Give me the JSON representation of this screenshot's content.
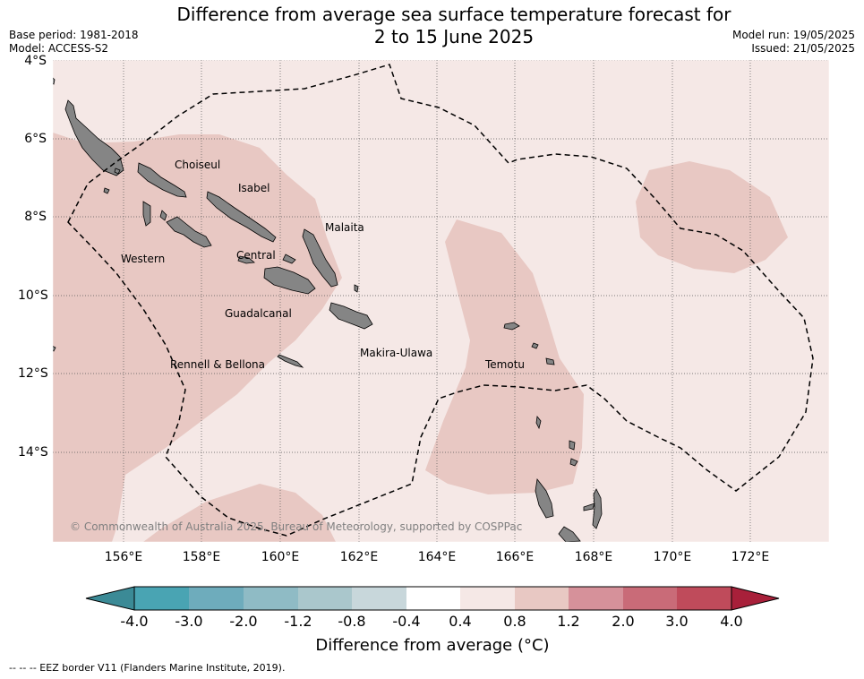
{
  "title_line1": "Difference from average sea surface temperature forecast for",
  "title_line2": "2 to 15 June 2025",
  "base_period": "Base period: 1981-2018",
  "model": "Model: ACCESS-S2",
  "model_run": "Model run: 19/05/2025",
  "issued": "Issued: 21/05/2025",
  "lat_ticks": [
    "4°S",
    "6°S",
    "8°S",
    "10°S",
    "12°S",
    "14°S"
  ],
  "lon_ticks": [
    "156°E",
    "158°E",
    "160°E",
    "162°E",
    "164°E",
    "166°E",
    "168°E",
    "170°E",
    "172°E"
  ],
  "places": [
    "Choiseul",
    "Isabel",
    "Malaita",
    "Western",
    "Central",
    "Guadalcanal",
    "Rennell & Bellona",
    "Makira-Ulawa",
    "Temotu"
  ],
  "copyright": "© Commonwealth of Australia 2025, Bureau of Meteorology, supported by COSPPac",
  "colorbar": {
    "labels": [
      "-4.0",
      "-3.0",
      "-2.0",
      "-1.2",
      "-0.8",
      "-0.4",
      "0.4",
      "0.8",
      "1.2",
      "2.0",
      "3.0",
      "4.0"
    ],
    "colors": [
      "#3b8a96",
      "#49a4b3",
      "#6eacbc",
      "#8fbbc5",
      "#aac7cc",
      "#c8d7db",
      "#ffffff",
      "#f5e8e6",
      "#e8c8c3",
      "#d6919a",
      "#c96b78",
      "#bf4b5b",
      "#a8203a"
    ],
    "title": "Difference from average (°C)"
  },
  "footer": "--  --  -- EEZ border V11 (Flanders Marine Institute, 2019)."
}
